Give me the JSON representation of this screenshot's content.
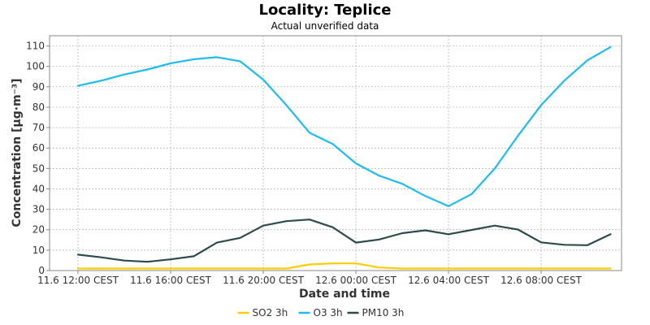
{
  "chart_data": {
    "type": "line",
    "title": "Locality: Teplice",
    "subtitle": "Actual unverified data",
    "xlabel": "Date and time",
    "ylabel": "Concentration [µg·m⁻³]",
    "ylim": [
      0,
      115
    ],
    "yticks": [
      0,
      10,
      20,
      30,
      40,
      50,
      60,
      70,
      80,
      90,
      100,
      110
    ],
    "xtick_labels": [
      "11.6 12:00 CEST",
      "11.6 16:00 CEST",
      "11.6 20:00 CEST",
      "12.6 00:00 CEST",
      "12.6 04:00 CEST",
      "12.6 08:00 CEST"
    ],
    "grid": true,
    "legend_position": "bottom",
    "x_start_time": "11.6 12:00",
    "series": [
      {
        "name": "SO2 3h",
        "color": "#ffcc00",
        "values": [
          1,
          1,
          1,
          1,
          1,
          1,
          1,
          1,
          1,
          1,
          3,
          3.5,
          3.5,
          1.5,
          1,
          1,
          1,
          1,
          1,
          1,
          1,
          1,
          1,
          1
        ]
      },
      {
        "name": "O3 3h",
        "color": "#1ebbee",
        "values": [
          90.5,
          93,
          96,
          98.5,
          101.5,
          103.5,
          104.5,
          102.5,
          93.5,
          81,
          67.5,
          62,
          52.5,
          46.5,
          42.5,
          36.5,
          31.5,
          37.5,
          50,
          66,
          81,
          93,
          103,
          109.5
        ]
      },
      {
        "name": "PM10 3h",
        "color": "#2d4b4b",
        "values": [
          7.8,
          6.5,
          4.9,
          4.3,
          5.5,
          7,
          13.7,
          16,
          22,
          24.2,
          25,
          21.2,
          13.7,
          15.2,
          18.3,
          19.7,
          17.8,
          19.9,
          22,
          20.1,
          13.8,
          12.6,
          12.4,
          17.8
        ]
      }
    ]
  }
}
